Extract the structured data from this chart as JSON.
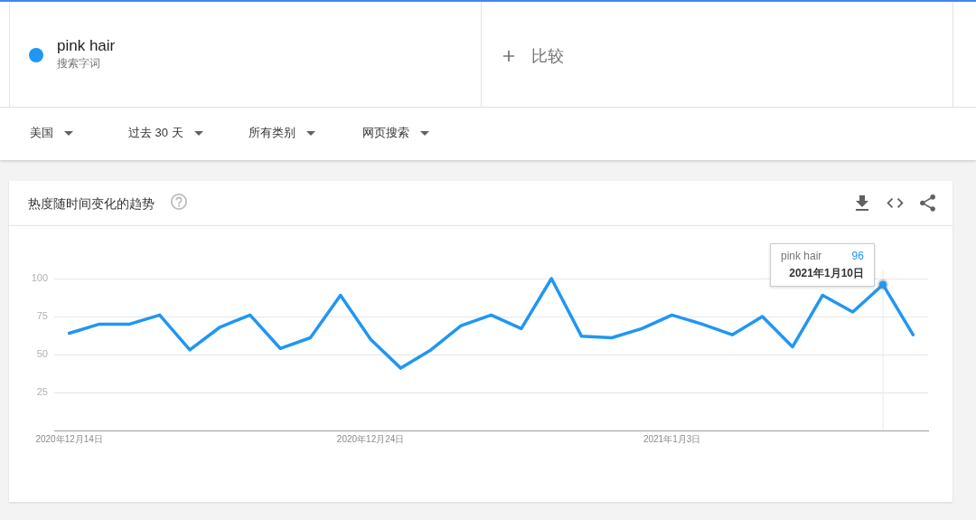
{
  "chart_data": {
    "type": "line",
    "title": "热度随时间变化的趋势",
    "x": [
      "2020-12-14",
      "2020-12-15",
      "2020-12-16",
      "2020-12-17",
      "2020-12-18",
      "2020-12-19",
      "2020-12-20",
      "2020-12-21",
      "2020-12-22",
      "2020-12-23",
      "2020-12-24",
      "2020-12-25",
      "2020-12-26",
      "2020-12-27",
      "2020-12-28",
      "2020-12-29",
      "2020-12-30",
      "2020-12-31",
      "2021-01-01",
      "2021-01-02",
      "2021-01-03",
      "2021-01-04",
      "2021-01-05",
      "2021-01-06",
      "2021-01-07",
      "2021-01-08",
      "2021-01-09",
      "2021-01-10",
      "2021-01-11"
    ],
    "series": [
      {
        "name": "pink hair",
        "color": "#2196f3",
        "values": [
          64,
          70,
          70,
          76,
          53,
          68,
          76,
          54,
          61,
          89,
          60,
          41,
          53,
          69,
          76,
          67,
          100,
          62,
          61,
          67,
          76,
          70,
          63,
          75,
          55,
          89,
          78,
          96,
          63
        ],
        "value_labels": [
          null,
          null,
          null,
          null,
          null,
          null,
          null,
          null,
          null,
          null,
          null,
          null,
          null,
          null,
          null,
          null,
          null,
          null,
          null,
          null,
          null,
          null,
          null,
          null,
          null,
          null,
          null,
          "96",
          null
        ]
      }
    ],
    "xlim": [
      "2020-12-13T12:00",
      "2021-01-11T12:00"
    ],
    "xticks": [
      {
        "value": "2020-12-14",
        "label": "2020年12月14日"
      },
      {
        "value": "2020-12-24",
        "label": "2020年12月24日"
      },
      {
        "value": "2021-01-03",
        "label": "2021年1月3日"
      }
    ],
    "ylim": [
      0,
      100
    ],
    "yticks": [
      25,
      50,
      75,
      100
    ],
    "grid": "y",
    "legend": "top left",
    "ref_lines": [
      {
        "axis": "x",
        "value": "2021-01-10",
        "color": "#e8e8e8"
      }
    ],
    "annotations": [
      "搜索字词",
      "比较",
      "美国",
      "过去 30 天",
      "所有类别",
      "网页搜索",
      {
        "text": "2021年1月10日",
        "x": "2021-01-10",
        "y": 96
      }
    ]
  }
}
